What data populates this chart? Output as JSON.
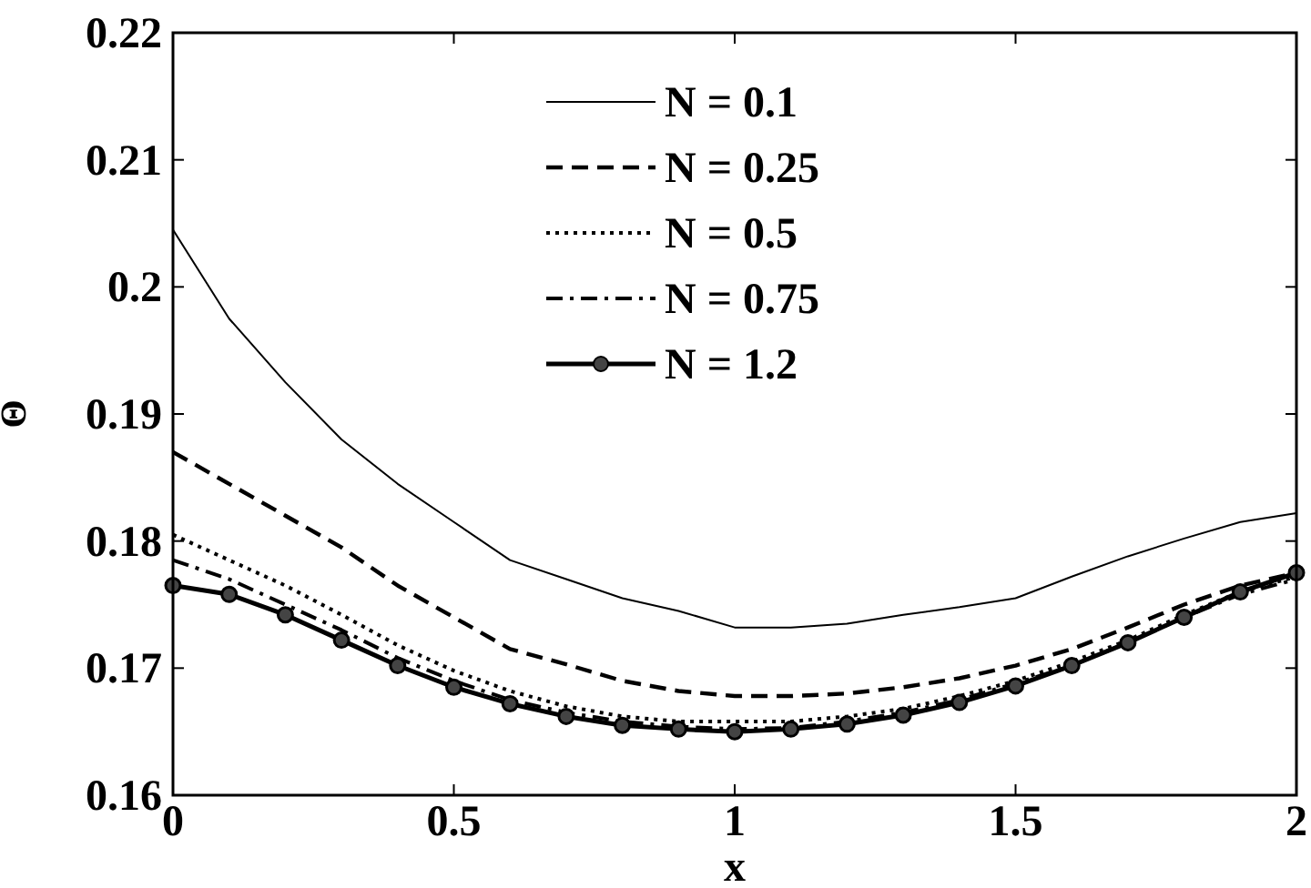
{
  "chart_data": {
    "type": "line",
    "xlabel": "x",
    "ylabel": "Θ",
    "x": [
      0,
      0.1,
      0.2,
      0.3,
      0.4,
      0.5,
      0.6,
      0.7,
      0.8,
      0.9,
      1.0,
      1.1,
      1.2,
      1.3,
      1.4,
      1.5,
      1.6,
      1.7,
      1.8,
      1.9,
      2.0
    ],
    "xlim": [
      0,
      2
    ],
    "xticks": [
      0,
      0.5,
      1,
      1.5,
      2
    ],
    "ylim": [
      0.16,
      0.22
    ],
    "yticks": [
      0.16,
      0.17,
      0.18,
      0.19,
      0.2,
      0.21,
      0.22
    ],
    "grid": false,
    "legend": "top",
    "series": [
      {
        "name": "N = 0.1",
        "color": "#000000",
        "line_style": "solid",
        "marker": "none",
        "values": [
          0.2045,
          0.1975,
          0.1925,
          0.188,
          0.1845,
          0.1815,
          0.1785,
          0.177,
          0.1755,
          0.1745,
          0.1732,
          0.1732,
          0.1735,
          0.1742,
          0.1748,
          0.1755,
          0.1772,
          0.1788,
          0.1802,
          0.1815,
          0.1822
        ]
      },
      {
        "name": "N = 0.25",
        "color": "#000000",
        "line_style": "dashed",
        "marker": "none",
        "values": [
          0.187,
          0.1845,
          0.182,
          0.1795,
          0.1765,
          0.174,
          0.1715,
          0.1703,
          0.169,
          0.1682,
          0.1678,
          0.1678,
          0.168,
          0.1685,
          0.1692,
          0.1702,
          0.1715,
          0.1732,
          0.175,
          0.1765,
          0.1775
        ]
      },
      {
        "name": "N = 0.5",
        "color": "#000000",
        "line_style": "dotted",
        "marker": "none",
        "values": [
          0.1805,
          0.1785,
          0.1765,
          0.1742,
          0.1718,
          0.1698,
          0.1682,
          0.167,
          0.1662,
          0.1658,
          0.1658,
          0.1658,
          0.1662,
          0.1668,
          0.1678,
          0.169,
          0.1705,
          0.1722,
          0.1742,
          0.176,
          0.1772
        ]
      },
      {
        "name": "N = 0.75",
        "color": "#000000",
        "line_style": "dashdot",
        "marker": "none",
        "values": [
          0.1785,
          0.177,
          0.175,
          0.173,
          0.1708,
          0.169,
          0.1675,
          0.1665,
          0.1658,
          0.1654,
          0.1652,
          0.1653,
          0.1658,
          0.1665,
          0.1675,
          0.1688,
          0.1702,
          0.172,
          0.174,
          0.1758,
          0.177
        ]
      },
      {
        "name": "N = 1.2",
        "color": "#000000",
        "line_style": "solid",
        "marker": "circle",
        "values": [
          0.1765,
          0.1758,
          0.1742,
          0.1722,
          0.1702,
          0.1685,
          0.1672,
          0.1662,
          0.1655,
          0.1652,
          0.165,
          0.1652,
          0.1656,
          0.1663,
          0.1673,
          0.1686,
          0.1702,
          0.172,
          0.174,
          0.176,
          0.1775
        ]
      }
    ]
  }
}
